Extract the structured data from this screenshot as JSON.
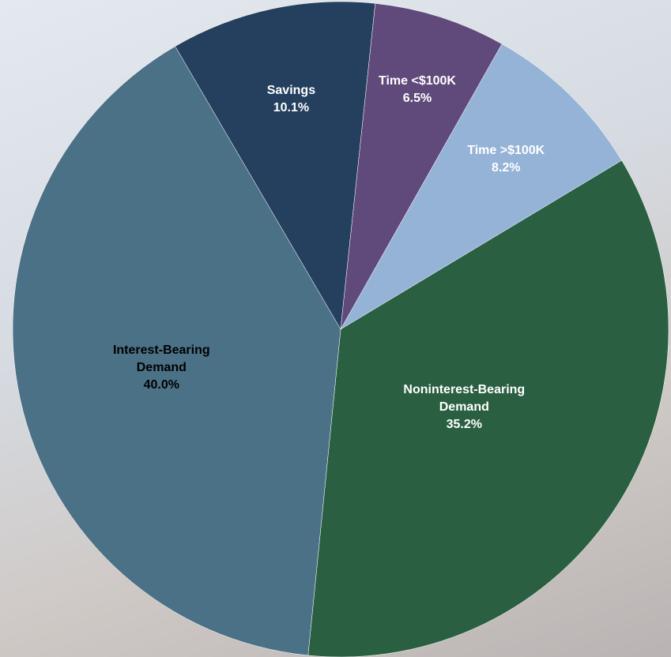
{
  "chart_data": {
    "type": "pie",
    "categories": [
      "Savings",
      "Time <$100K",
      "Time >$100K",
      "Noninterest-Bearing Demand",
      "Interest-Bearing Demand"
    ],
    "values": [
      10.1,
      6.5,
      8.2,
      35.2,
      40.0
    ],
    "value_labels": [
      "10.1%",
      "6.5%",
      "8.2%",
      "35.2%",
      "40.0%"
    ],
    "colors": [
      "#253f5f",
      "#604a7b",
      "#95b3d7",
      "#2a6041",
      "#4b7186"
    ]
  }
}
